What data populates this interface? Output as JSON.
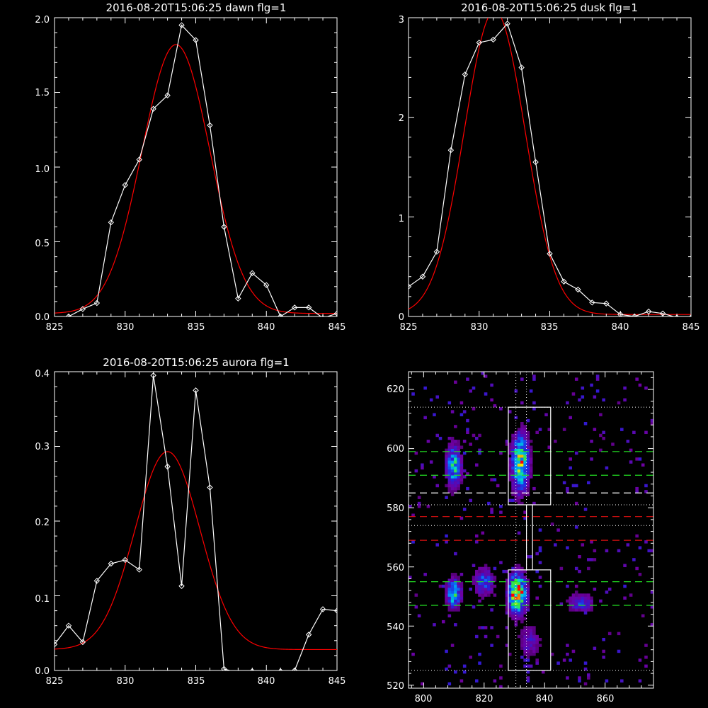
{
  "chart_data": [
    {
      "type": "line",
      "title": "2016-08-20T15:06:25 dawn flg=1",
      "xlim": [
        825,
        845
      ],
      "ylim": [
        0,
        2.0
      ],
      "xticks": [
        "825",
        "830",
        "835",
        "840",
        "845"
      ],
      "yticks": [
        "0.0",
        "0.5",
        "1.0",
        "1.5",
        "2.0"
      ],
      "series": [
        {
          "kind": "data",
          "color": "#ffffff",
          "marker": "diamond",
          "x": [
            826,
            827,
            828,
            829,
            830,
            831,
            832,
            833,
            834,
            835,
            836,
            837,
            838,
            839,
            840,
            841,
            842,
            843,
            844,
            845
          ],
          "y": [
            0.0,
            0.05,
            0.09,
            0.63,
            0.88,
            1.05,
            1.39,
            1.48,
            1.95,
            1.85,
            1.28,
            0.6,
            0.12,
            0.29,
            0.21,
            0.0,
            0.06,
            0.06,
            -0.01,
            0.02
          ]
        },
        {
          "kind": "fit",
          "color": "#ff0000",
          "gaussian": {
            "amp": 1.8,
            "center": 833.6,
            "sigma": 2.4,
            "offset": 0.02
          }
        }
      ]
    },
    {
      "type": "line",
      "title": "2016-08-20T15:06:25 dusk flg=1",
      "xlim": [
        825,
        845
      ],
      "ylim": [
        0,
        3.0
      ],
      "xticks": [
        "825",
        "830",
        "835",
        "840",
        "845"
      ],
      "yticks": [
        "0",
        "1",
        "2",
        "3"
      ],
      "series": [
        {
          "kind": "data",
          "color": "#ffffff",
          "marker": "diamond",
          "x": [
            825,
            826,
            827,
            828,
            829,
            830,
            831,
            832,
            833,
            834,
            835,
            836,
            837,
            838,
            839,
            840,
            841,
            842,
            843,
            844,
            845
          ],
          "y": [
            0.3,
            0.4,
            0.65,
            1.67,
            2.43,
            2.75,
            2.78,
            2.94,
            2.5,
            1.55,
            0.63,
            0.35,
            0.27,
            0.14,
            0.13,
            0.02,
            0.0,
            0.05,
            0.03,
            -0.01,
            -0.01
          ]
        },
        {
          "kind": "fit",
          "color": "#ff0000",
          "gaussian": {
            "amp": 3.05,
            "center": 831.1,
            "sigma": 2.15,
            "offset": 0.02
          }
        }
      ]
    },
    {
      "type": "line",
      "title": "2016-08-20T15:06:25 aurora flg=1",
      "xlim": [
        825,
        845
      ],
      "ylim": [
        0,
        0.4
      ],
      "xticks": [
        "825",
        "830",
        "835",
        "840",
        "845"
      ],
      "yticks": [
        "0.0",
        "0.1",
        "0.2",
        "0.3",
        "0.4"
      ],
      "series": [
        {
          "kind": "data",
          "color": "#ffffff",
          "marker": "diamond",
          "x": [
            825,
            826,
            827,
            828,
            829,
            830,
            831,
            832,
            833,
            834,
            835,
            836,
            837,
            838,
            839,
            840,
            841,
            842,
            843,
            844,
            845
          ],
          "y": [
            0.035,
            0.06,
            0.038,
            0.12,
            0.143,
            0.148,
            0.135,
            0.395,
            0.273,
            0.113,
            0.375,
            0.245,
            0.002,
            -0.003,
            -0.001,
            -0.003,
            -0.001,
            0.0,
            0.048,
            0.082,
            0.08
          ]
        },
        {
          "kind": "fit",
          "color": "#ff0000",
          "gaussian": {
            "amp": 0.265,
            "center": 833.0,
            "sigma": 2.3,
            "offset": 0.028
          }
        }
      ]
    },
    {
      "type": "heatmap",
      "title": "",
      "xlim": [
        795,
        876
      ],
      "ylim": [
        519,
        626
      ],
      "xticks": [
        "800",
        "820",
        "840",
        "860"
      ],
      "yticks": [
        "520",
        "540",
        "560",
        "580",
        "600",
        "620"
      ],
      "clusters": [
        {
          "x": 810,
          "y": 594,
          "sx": 1.5,
          "sy": 4.5,
          "peak": 0.55
        },
        {
          "x": 810,
          "y": 551,
          "sx": 1.5,
          "sy": 3.0,
          "peak": 0.6
        },
        {
          "x": 832,
          "y": 595,
          "sx": 1.8,
          "sy": 6.0,
          "peak": 0.75
        },
        {
          "x": 831,
          "y": 551,
          "sx": 1.8,
          "sy": 4.0,
          "peak": 1.0
        },
        {
          "x": 820,
          "y": 555,
          "sx": 2.0,
          "sy": 3.0,
          "peak": 0.35
        },
        {
          "x": 852,
          "y": 548,
          "sx": 2.5,
          "sy": 2.0,
          "peak": 0.3
        },
        {
          "x": 835,
          "y": 535,
          "sx": 2.0,
          "sy": 3.0,
          "peak": 0.25
        }
      ],
      "boxes": [
        {
          "x0": 828,
          "x1": 842,
          "y0": 581,
          "y1": 614,
          "color": "#ffffff"
        },
        {
          "x0": 828,
          "x1": 842,
          "y0": 525,
          "y1": 559,
          "color": "#ffffff"
        },
        {
          "x0": 834,
          "x1": 836,
          "y0": 559,
          "y1": 581,
          "color": "#ffffff"
        }
      ],
      "hlines_dotted": [
        {
          "y": 614,
          "color": "#ffffff"
        },
        {
          "y": 581,
          "color": "#ffffff"
        },
        {
          "y": 574,
          "color": "#ffffff"
        },
        {
          "y": 525,
          "color": "#ffffff"
        }
      ],
      "hlines_dashed": [
        {
          "y": 599,
          "color": "#22dd22"
        },
        {
          "y": 591,
          "color": "#22dd22"
        },
        {
          "y": 585,
          "color": "#ffffff"
        },
        {
          "y": 577,
          "color": "#dd1111"
        },
        {
          "y": 569,
          "color": "#dd1111"
        },
        {
          "y": 555,
          "color": "#22dd22"
        },
        {
          "y": 547,
          "color": "#22dd22"
        }
      ],
      "vlines_dotted": [
        {
          "x": 830.5,
          "color": "#ffffff"
        },
        {
          "x": 834,
          "color": "#ffffff"
        }
      ]
    }
  ]
}
